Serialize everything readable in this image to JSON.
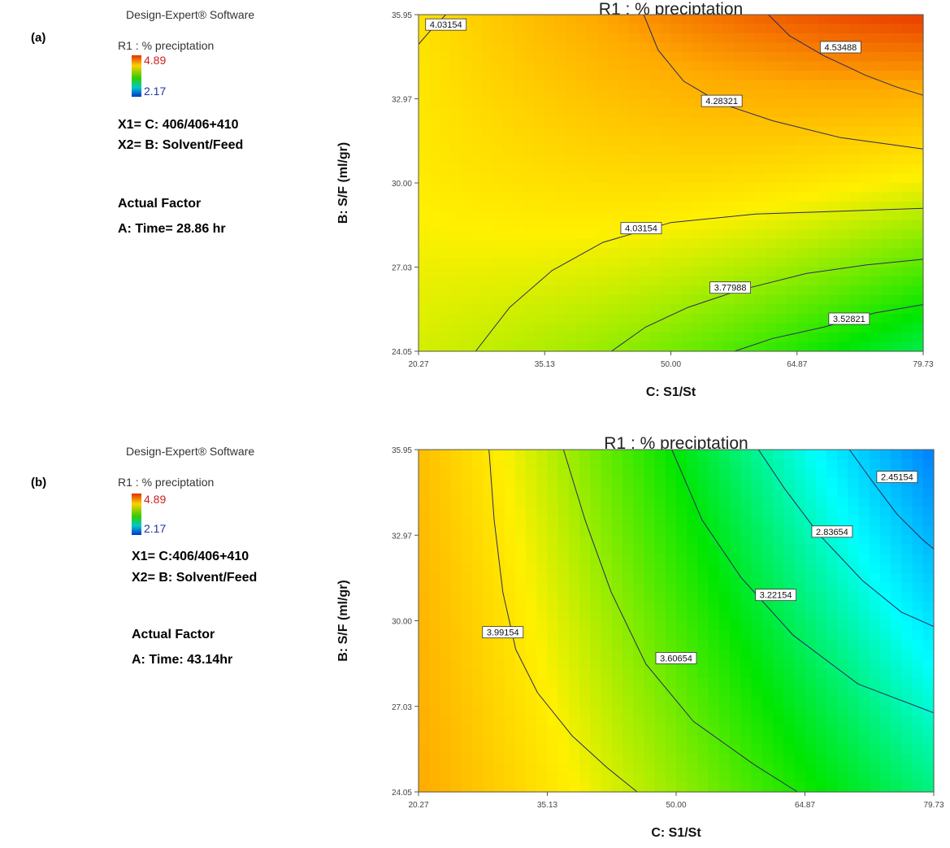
{
  "panels": [
    {
      "tag": "(a)",
      "software": "Design-Expert® Software",
      "legend": {
        "title": "R1 : % preciptation",
        "max": "4.89",
        "min": "2.17"
      },
      "x1": "X1= C: 406/406+410",
      "x2": "X2= B: Solvent/Feed",
      "actual_factor_title": "Actual Factor",
      "actual_factor": "A: Time= 28.86 hr"
    },
    {
      "tag": "(b)",
      "software": "Design-Expert® Software",
      "legend": {
        "title": "R1 : % preciptation",
        "max": "4.89",
        "min": "2.17"
      },
      "x1": "X1= C:406/406+410",
      "x2": "X2= B: Solvent/Feed",
      "actual_factor_title": "Actual Factor",
      "actual_factor": "A: Time: 43.14hr"
    }
  ],
  "colors": {
    "high": "#e02800",
    "mid": "#ffee00",
    "low_green": "#00e000",
    "cyan": "#00ffff",
    "blue": "#0030ff",
    "contour": "#2a2a60"
  },
  "chart_data": [
    {
      "type": "contour",
      "title": "R1 : % preciptation",
      "xlabel": "C: S1/St",
      "ylabel": "B: S/F (ml/gr)",
      "xlim": [
        20.27,
        79.73
      ],
      "ylim": [
        24.05,
        35.95
      ],
      "x_ticks": [
        "20.27",
        "35.13",
        "50.00",
        "64.87",
        "79.73"
      ],
      "y_ticks": [
        "24.05",
        "27.03",
        "30.00",
        "32.97",
        "35.95"
      ],
      "contours": [
        {
          "label": "4.03154",
          "label_at": [
            23.5,
            35.6
          ],
          "points": [
            [
              20.27,
              34.9
            ],
            [
              22.0,
              35.5
            ],
            [
              23.5,
              35.95
            ]
          ]
        },
        {
          "label": "4.53488",
          "label_at": [
            70.0,
            34.8
          ],
          "points": [
            [
              61.5,
              35.95
            ],
            [
              64.0,
              35.2
            ],
            [
              68.0,
              34.5
            ],
            [
              73.0,
              33.8
            ],
            [
              76.5,
              33.4
            ],
            [
              79.73,
              33.1
            ]
          ]
        },
        {
          "label": "4.28321",
          "label_at": [
            56.0,
            32.9
          ],
          "points": [
            [
              46.8,
              35.95
            ],
            [
              48.5,
              34.7
            ],
            [
              51.5,
              33.6
            ],
            [
              56.0,
              32.8
            ],
            [
              62.0,
              32.2
            ],
            [
              70.0,
              31.6
            ],
            [
              79.73,
              31.2
            ]
          ]
        },
        {
          "label": "4.03154",
          "label_at": [
            46.5,
            28.4
          ],
          "points": [
            [
              27.0,
              24.05
            ],
            [
              31.0,
              25.6
            ],
            [
              36.0,
              26.9
            ],
            [
              42.0,
              27.9
            ],
            [
              50.0,
              28.6
            ],
            [
              60.0,
              28.9
            ],
            [
              70.0,
              29.0
            ],
            [
              79.73,
              29.1
            ]
          ]
        },
        {
          "label": "3.77988",
          "label_at": [
            57.0,
            26.3
          ],
          "points": [
            [
              43.0,
              24.05
            ],
            [
              47.0,
              24.9
            ],
            [
              52.0,
              25.6
            ],
            [
              58.0,
              26.2
            ],
            [
              66.0,
              26.8
            ],
            [
              73.0,
              27.1
            ],
            [
              79.73,
              27.3
            ]
          ]
        },
        {
          "label": "3.52821",
          "label_at": [
            71.0,
            25.2
          ],
          "points": [
            [
              57.5,
              24.05
            ],
            [
              62.0,
              24.5
            ],
            [
              68.0,
              24.9
            ],
            [
              74.0,
              25.4
            ],
            [
              79.73,
              25.7
            ]
          ]
        }
      ]
    },
    {
      "type": "contour",
      "title": "R1 : % preciptation",
      "xlabel": "C: S1/St",
      "ylabel": "B: S/F (ml/gr)",
      "xlim": [
        20.27,
        79.73
      ],
      "ylim": [
        24.05,
        35.95
      ],
      "x_ticks": [
        "20.27",
        "35.13",
        "50.00",
        "64.87",
        "79.73"
      ],
      "y_ticks": [
        "24.05",
        "27.03",
        "30.00",
        "32.97",
        "35.95"
      ],
      "contours": [
        {
          "label": "3.99154",
          "label_at": [
            30.0,
            29.6
          ],
          "points": [
            [
              28.4,
              35.95
            ],
            [
              29.0,
              33.5
            ],
            [
              30.0,
              31.0
            ],
            [
              31.5,
              29.0
            ],
            [
              34.0,
              27.5
            ],
            [
              38.0,
              26.0
            ],
            [
              42.0,
              24.9
            ],
            [
              45.5,
              24.05
            ]
          ]
        },
        {
          "label": "3.60654",
          "label_at": [
            50.0,
            28.7
          ],
          "points": [
            [
              37.0,
              35.95
            ],
            [
              39.5,
              33.5
            ],
            [
              42.5,
              31.0
            ],
            [
              46.5,
              28.5
            ],
            [
              52.0,
              26.5
            ],
            [
              59.0,
              25.0
            ],
            [
              64.0,
              24.05
            ]
          ]
        },
        {
          "label": "3.22154",
          "label_at": [
            61.5,
            30.9
          ],
          "points": [
            [
              49.5,
              35.95
            ],
            [
              53.0,
              33.5
            ],
            [
              57.5,
              31.5
            ],
            [
              63.5,
              29.5
            ],
            [
              71.0,
              27.8
            ],
            [
              79.73,
              26.8
            ]
          ]
        },
        {
          "label": "2.83654",
          "label_at": [
            68.0,
            33.1
          ],
          "points": [
            [
              59.5,
              35.95
            ],
            [
              62.5,
              34.6
            ],
            [
              66.5,
              33.0
            ],
            [
              71.5,
              31.4
            ],
            [
              76.0,
              30.3
            ],
            [
              79.73,
              29.8
            ]
          ]
        },
        {
          "label": "2.45154",
          "label_at": [
            75.5,
            35.0
          ],
          "points": [
            [
              70.0,
              35.95
            ],
            [
              72.5,
              34.9
            ],
            [
              75.5,
              33.7
            ],
            [
              78.5,
              32.8
            ],
            [
              79.73,
              32.5
            ]
          ]
        }
      ]
    }
  ]
}
